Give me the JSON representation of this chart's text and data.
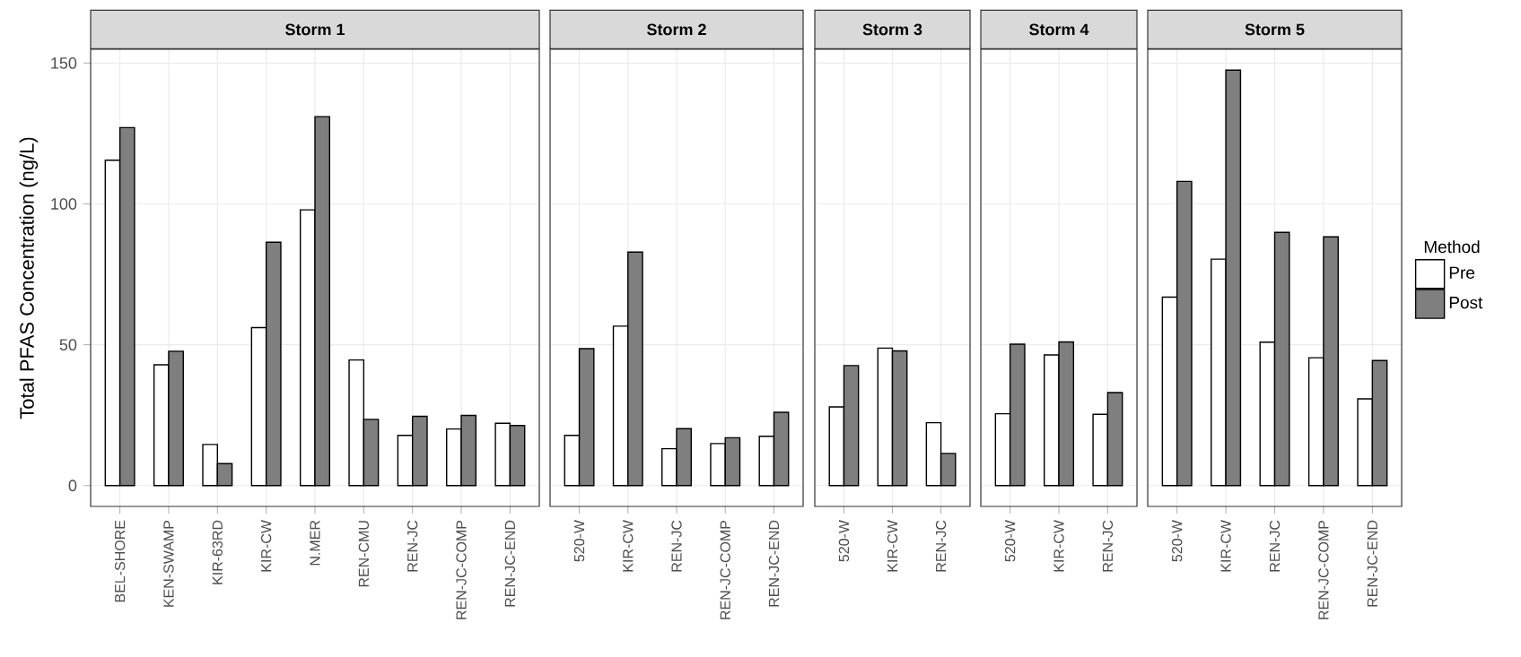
{
  "chart_data": [
    {
      "type": "bar",
      "title": "Storm 1",
      "ylabel": "Total PFAS Concentration (ng/L)",
      "categories": [
        "BEL-SHORE",
        "KEN-SWAMP",
        "KIR-63RD",
        "KIR-CW",
        "N.MER",
        "REN-CMU",
        "REN-JC",
        "REN-JC-COMP",
        "REN-JC-END"
      ],
      "series": [
        {
          "color": "#ffffff",
          "values": [
            115.5,
            42.9,
            14.6,
            56.1,
            97.9,
            44.6,
            17.8,
            20.1,
            22.1
          ]
        },
        {
          "color": "#7f7f7f",
          "values": [
            127.1,
            47.7,
            7.8,
            86.4,
            131.0,
            23.5,
            24.6,
            24.9,
            21.3
          ]
        }
      ],
      "ylim": [
        -7.4,
        154.9
      ],
      "yticks": [
        0,
        50,
        100,
        150
      ],
      "grid": true
    },
    {
      "type": "bar",
      "title": "Storm 2",
      "categories": [
        "520-W",
        "KIR-CW",
        "REN-JC",
        "REN-JC-COMP",
        "REN-JC-END"
      ],
      "series": [
        {
          "color": "#ffffff",
          "values": [
            17.8,
            56.6,
            13.1,
            14.9,
            17.5
          ]
        },
        {
          "color": "#7f7f7f",
          "values": [
            48.6,
            82.9,
            20.2,
            17.0,
            26.0
          ]
        }
      ],
      "ylim": [
        -7.4,
        154.9
      ],
      "yticks": [
        0,
        50,
        100,
        150
      ],
      "grid": true,
      "tick_labels": "x"
    },
    {
      "type": "bar",
      "title": "Storm 3",
      "categories": [
        "520-W",
        "KIR-CW",
        "REN-JC"
      ],
      "series": [
        {
          "color": "#ffffff",
          "values": [
            27.9,
            48.8,
            22.3
          ]
        },
        {
          "color": "#7f7f7f",
          "values": [
            42.6,
            47.8,
            11.4
          ]
        }
      ],
      "ylim": [
        -7.4,
        154.9
      ],
      "yticks": [
        0,
        50,
        100,
        150
      ],
      "grid": true,
      "tick_labels": "x"
    },
    {
      "type": "bar",
      "title": "Storm 4",
      "categories": [
        "520-W",
        "KIR-CW",
        "REN-JC"
      ],
      "series": [
        {
          "color": "#ffffff",
          "values": [
            25.5,
            46.4,
            25.3
          ]
        },
        {
          "color": "#7f7f7f",
          "values": [
            50.2,
            51.0,
            33.0
          ]
        }
      ],
      "ylim": [
        -7.4,
        154.9
      ],
      "yticks": [
        0,
        50,
        100,
        150
      ],
      "grid": true,
      "tick_labels": "x"
    },
    {
      "type": "bar",
      "title": "Storm 5",
      "categories": [
        "520-W",
        "KIR-CW",
        "REN-JC",
        "REN-JC-COMP",
        "REN-JC-END"
      ],
      "series": [
        {
          "name": "Pre",
          "color": "#ffffff",
          "values": [
            66.9,
            80.4,
            50.9,
            45.4,
            30.8
          ]
        },
        {
          "name": "Post",
          "color": "#7f7f7f",
          "values": [
            108.0,
            147.5,
            89.9,
            88.3,
            44.4
          ]
        }
      ],
      "ylim": [
        -7.4,
        154.9
      ],
      "yticks": [
        0,
        50,
        100,
        150
      ],
      "grid": true,
      "tick_labels": "x",
      "legend": "right",
      "legend_title": "Method"
    }
  ]
}
